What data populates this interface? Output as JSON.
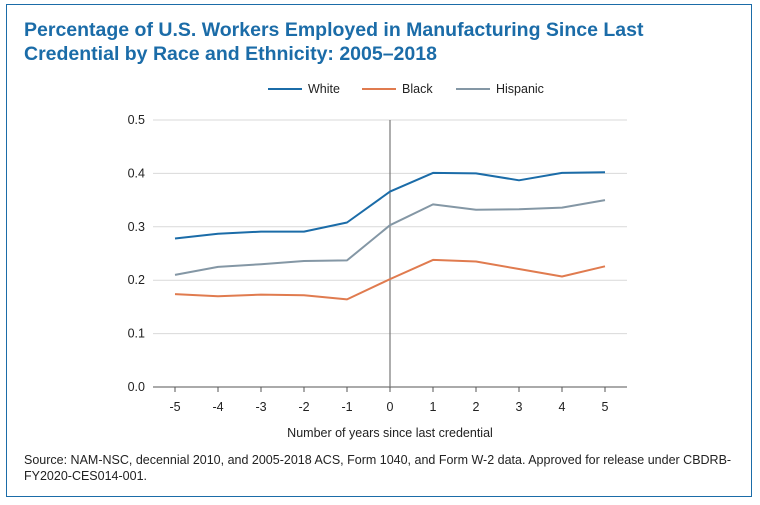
{
  "chart_data": {
    "type": "line",
    "title": "Percentage of U.S. Workers Employed in Manufacturing Since Last Credential by Race and Ethnicity: 2005–2018",
    "xlabel": "Number of years since last credential",
    "ylabel": "",
    "x": [
      -5,
      -4,
      -3,
      -2,
      -1,
      0,
      1,
      2,
      3,
      4,
      5
    ],
    "x_tick_labels": [
      "-5",
      "-4",
      "-3",
      "-2",
      "-1",
      "0",
      "1",
      "2",
      "3",
      "4",
      "5"
    ],
    "ylim": [
      0,
      0.5
    ],
    "y_ticks": [
      0.0,
      0.1,
      0.2,
      0.3,
      0.4,
      0.5
    ],
    "y_tick_labels": [
      "0.0",
      "0.1",
      "0.2",
      "0.3",
      "0.4",
      "0.5"
    ],
    "grid": "horizontal",
    "legend_position": "top",
    "reference_line_x": 0,
    "series": [
      {
        "name": "White",
        "color": "#1b6ca8",
        "values": [
          0.278,
          0.287,
          0.291,
          0.291,
          0.308,
          0.366,
          0.401,
          0.4,
          0.387,
          0.401,
          0.402
        ]
      },
      {
        "name": "Black",
        "color": "#e07b4f",
        "values": [
          0.174,
          0.17,
          0.173,
          0.172,
          0.164,
          0.202,
          0.238,
          0.235,
          0.221,
          0.207,
          0.226
        ]
      },
      {
        "name": "Hispanic",
        "color": "#8497a5",
        "values": [
          0.21,
          0.225,
          0.23,
          0.236,
          0.237,
          0.303,
          0.342,
          0.332,
          0.333,
          0.336,
          0.35
        ]
      }
    ]
  },
  "source_text": "Source: NAM-NSC, decennial 2010, and 2005-2018 ACS, Form 1040, and Form W-2 data. Approved for release under CBDRB-FY2020-CES014-001."
}
